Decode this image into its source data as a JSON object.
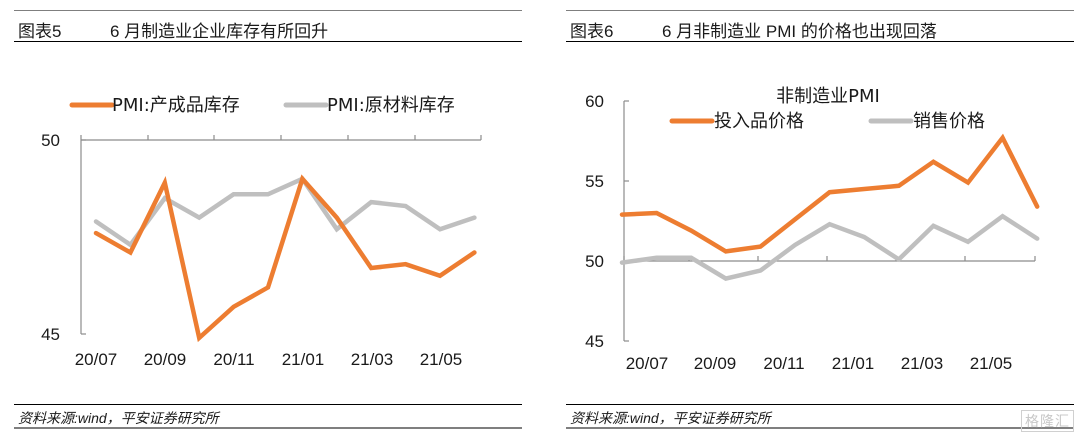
{
  "panels": [
    {
      "fig_label": "图表5",
      "title": "6 月制造业企业库存有所回升",
      "source": "资料来源:wind，平安证券研究所"
    },
    {
      "fig_label": "图表6",
      "title": "6 月非制造业 PMI 的价格也出现回落",
      "source": "资料来源:wind，平安证券研究所"
    }
  ],
  "watermark": "格隆汇",
  "chart_data": [
    {
      "type": "line",
      "title": "",
      "xlabel": "",
      "ylabel": "",
      "ylim": [
        45,
        50
      ],
      "yticks": [
        "50",
        "45"
      ],
      "xtick_labels": [
        "20/07",
        "20/09",
        "20/11",
        "21/01",
        "21/03",
        "21/05"
      ],
      "x": [
        "20/07",
        "20/08",
        "20/09",
        "20/10",
        "20/11",
        "20/12",
        "21/01",
        "21/02",
        "21/03",
        "21/04",
        "21/05",
        "21/06"
      ],
      "legend_position": "top",
      "grid": false,
      "series": [
        {
          "name": "PMI:产成品库存",
          "color": "#ED7D31",
          "values": [
            47.6,
            47.1,
            48.9,
            44.9,
            45.7,
            46.2,
            49.0,
            48.0,
            46.7,
            46.8,
            46.5,
            47.1
          ]
        },
        {
          "name": "PMI:原材料库存",
          "color": "#BFBFBF",
          "values": [
            47.9,
            47.3,
            48.5,
            48.0,
            48.6,
            48.6,
            49.0,
            47.7,
            48.4,
            48.3,
            47.7,
            48.0
          ]
        }
      ]
    },
    {
      "type": "line",
      "title": "非制造业PMI",
      "xlabel": "",
      "ylabel": "",
      "ylim": [
        45,
        60
      ],
      "yticks": [
        "60",
        "55",
        "50",
        "45"
      ],
      "xtick_labels": [
        "20/07",
        "20/09",
        "20/11",
        "21/01",
        "21/03",
        "21/05"
      ],
      "x": [
        "20/06",
        "20/07",
        "20/08",
        "20/09",
        "20/10",
        "20/11",
        "20/12",
        "21/01",
        "21/02",
        "21/03",
        "21/04",
        "21/05",
        "21/06"
      ],
      "legend_position": "top",
      "grid": false,
      "series": [
        {
          "name": "投入品价格",
          "color": "#ED7D31",
          "values": [
            52.9,
            53.0,
            51.9,
            50.6,
            50.9,
            52.6,
            54.3,
            54.5,
            54.7,
            56.2,
            54.9,
            57.7,
            53.4
          ]
        },
        {
          "name": "销售价格",
          "color": "#BFBFBF",
          "values": [
            49.9,
            50.2,
            50.2,
            48.9,
            49.4,
            51.0,
            52.3,
            51.5,
            50.1,
            52.2,
            51.2,
            52.8,
            51.4
          ]
        }
      ]
    }
  ]
}
